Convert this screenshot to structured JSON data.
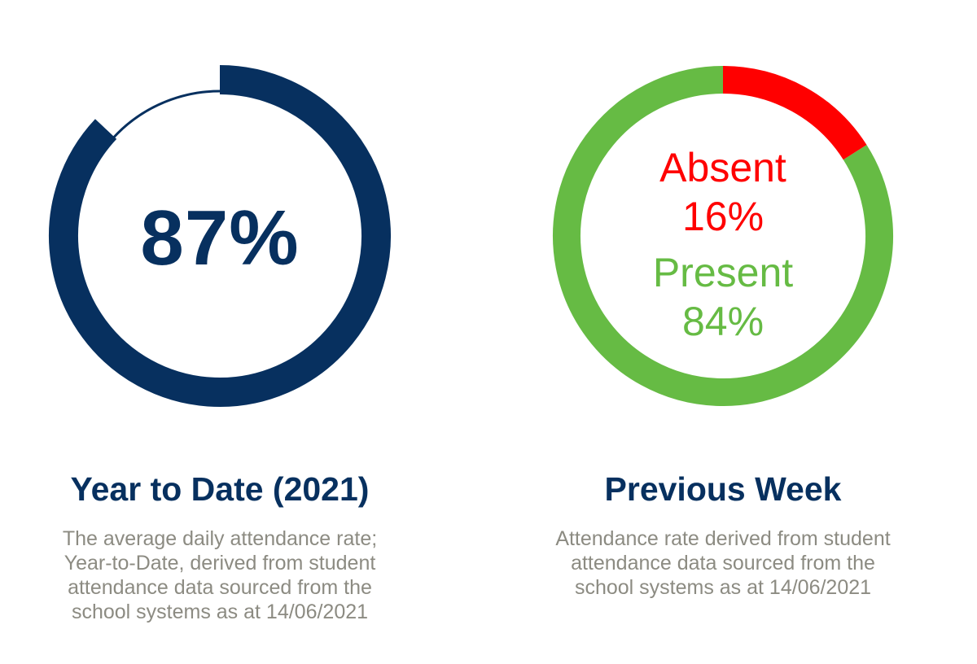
{
  "colors": {
    "navy": "#07305f",
    "red": "#ff0000",
    "green": "#66bb44",
    "gray_text": "#8c8b82"
  },
  "chart_data": [
    {
      "type": "pie",
      "variant": "donut-progress",
      "center_label": "87%",
      "value_percent": 87,
      "title": "Year to Date (2021)",
      "description": "The average daily attendance rate; Year-to-Date, derived from student attendance data sourced from the school systems as at 14/06/2021"
    },
    {
      "type": "pie",
      "variant": "donut",
      "slices": [
        {
          "label": "Absent",
          "value_label": "16%",
          "value": 16,
          "color": "#ff0000"
        },
        {
          "label": "Present",
          "value_label": "84%",
          "value": 84,
          "color": "#66bb44"
        }
      ],
      "title": "Previous Week",
      "description": "Attendance rate derived from student attendance data sourced from the school systems as at 14/06/2021"
    }
  ],
  "ytd": {
    "center_text": "87%",
    "heading": "Year to Date (2021)",
    "desc_lines": [
      "The average daily attendance rate;",
      "Year-to-Date, derived from student",
      "attendance data sourced from the",
      "school systems as at 14/06/2021"
    ]
  },
  "week": {
    "absent_label": "Absent",
    "absent_value": "16%",
    "present_label": "Present",
    "present_value": "84%",
    "heading": "Previous Week",
    "desc_lines": [
      "Attendance rate derived from student",
      "attendance data sourced from the",
      "school systems as at 14/06/2021"
    ]
  }
}
